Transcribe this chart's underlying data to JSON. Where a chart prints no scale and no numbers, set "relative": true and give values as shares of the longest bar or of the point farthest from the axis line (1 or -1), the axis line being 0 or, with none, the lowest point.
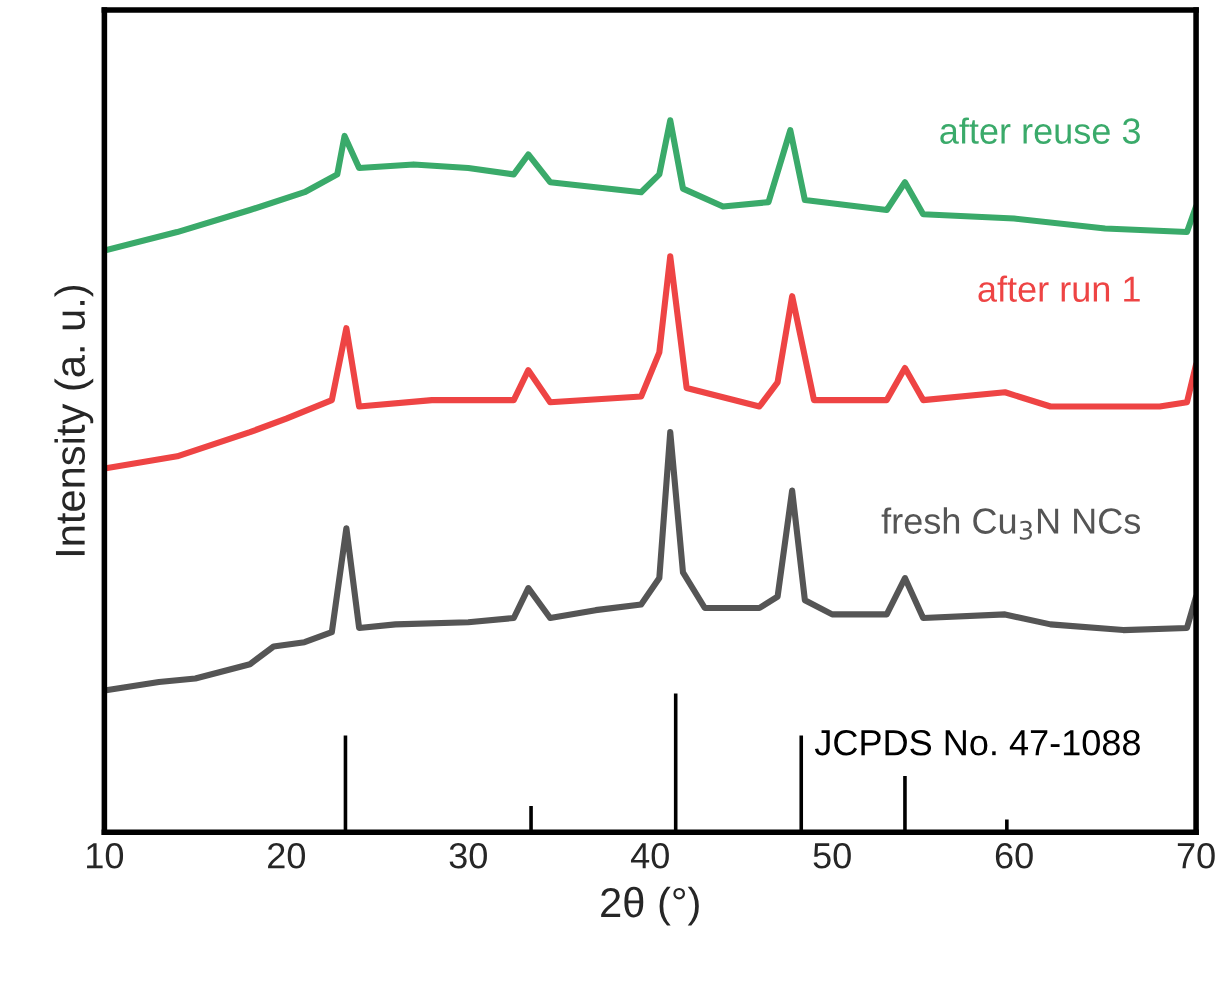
{
  "chart_data": {
    "type": "line",
    "relative": true,
    "xlabel": "2θ (°)",
    "ylabel": "Intensity (a. u.)",
    "xlim": [
      10,
      70
    ],
    "xticks": [
      10,
      20,
      30,
      40,
      50,
      60,
      70
    ],
    "grid": false,
    "legend": false,
    "line_style": "solid",
    "marker": "none",
    "series": [
      {
        "name": "after reuse 3",
        "color": "#3aaa6a",
        "x": [
          10,
          14,
          18,
          21,
          22.8,
          23.2,
          24,
          27,
          30,
          32.5,
          33.3,
          34.5,
          39.5,
          40.5,
          41.1,
          41.8,
          44,
          46.5,
          47.7,
          48.5,
          53,
          54,
          55,
          60,
          65,
          69.5,
          70
        ],
        "values": [
          0.817,
          0.843,
          0.874,
          0.899,
          0.924,
          0.978,
          0.933,
          0.938,
          0.933,
          0.924,
          0.952,
          0.913,
          0.899,
          0.924,
          1,
          0.904,
          0.879,
          0.885,
          0.986,
          0.888,
          0.874,
          0.913,
          0.868,
          0.862,
          0.848,
          0.843,
          0.879
        ]
      },
      {
        "name": "after run 1",
        "color": "#ee4444",
        "x": [
          10,
          14,
          18,
          20,
          22.5,
          23.3,
          24,
          28,
          32.5,
          33.3,
          34.5,
          39.5,
          40.5,
          41.1,
          42,
          46,
          47,
          47.8,
          49,
          53,
          54,
          55,
          59.5,
          62,
          68,
          69.5,
          70
        ],
        "values": [
          0.511,
          0.528,
          0.562,
          0.581,
          0.607,
          0.708,
          0.598,
          0.607,
          0.607,
          0.649,
          0.604,
          0.612,
          0.674,
          0.809,
          0.624,
          0.598,
          0.632,
          0.753,
          0.607,
          0.607,
          0.652,
          0.607,
          0.618,
          0.598,
          0.598,
          0.604,
          0.657
        ]
      },
      {
        "name": "fresh Cu$_{3}$N NCs",
        "color": "#555555",
        "x": [
          10,
          13,
          15,
          18,
          19.3,
          21,
          22.5,
          23.3,
          24,
          26,
          30,
          32.5,
          33.3,
          34.5,
          37,
          39.5,
          40.5,
          41.1,
          41.8,
          43,
          46,
          47,
          47.8,
          48.5,
          50,
          53,
          54,
          55,
          59.5,
          62,
          66,
          69.5,
          70
        ],
        "values": [
          0.199,
          0.211,
          0.216,
          0.236,
          0.261,
          0.267,
          0.281,
          0.427,
          0.287,
          0.292,
          0.295,
          0.301,
          0.343,
          0.301,
          0.312,
          0.32,
          0.357,
          0.562,
          0.365,
          0.315,
          0.315,
          0.331,
          0.48,
          0.326,
          0.306,
          0.306,
          0.357,
          0.301,
          0.306,
          0.292,
          0.284,
          0.287,
          0.331
        ]
      },
      {
        "name": "JCPDS No. 47-1088",
        "type": "bar",
        "color": "#000000",
        "x": [
          23.25,
          33.45,
          41.4,
          48.3,
          54.0,
          59.6
        ],
        "values": [
          0.138,
          0.039,
          0.197,
          0.138,
          0.081,
          0.02
        ]
      }
    ]
  }
}
